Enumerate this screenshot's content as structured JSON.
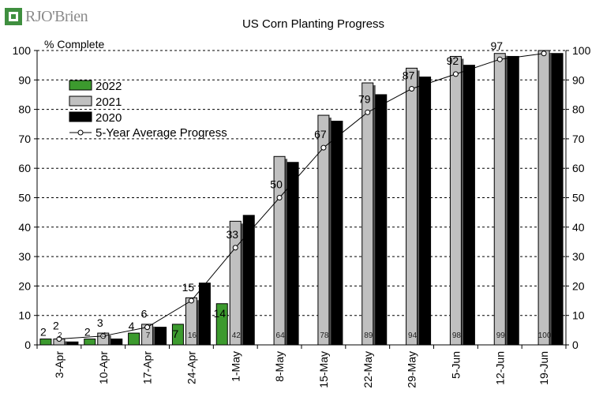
{
  "brand": {
    "name": "RJO'Brien",
    "green": "#3f8f3f",
    "gray": "#8a8a8a"
  },
  "chart_data": {
    "type": "bar",
    "title": "US Corn Planting Progress",
    "ylabel": "% Complete",
    "ylim": [
      0,
      100
    ],
    "yticks": [
      0,
      10,
      20,
      30,
      40,
      50,
      60,
      70,
      80,
      90,
      100
    ],
    "secondary_axis": true,
    "categories": [
      "3-Apr",
      "10-Apr",
      "17-Apr",
      "24-Apr",
      "1-May",
      "8-May",
      "15-May",
      "22-May",
      "29-May",
      "5-Jun",
      "12-Jun",
      "19-Jun"
    ],
    "series": [
      {
        "name": "2022",
        "color": "#3c9a2e",
        "values": [
          2,
          2,
          4,
          7,
          14,
          null,
          null,
          null,
          null,
          null,
          null,
          null
        ]
      },
      {
        "name": "2021",
        "color": "#c0c0c0",
        "values": [
          2,
          4,
          7,
          16,
          42,
          64,
          78,
          89,
          94,
          98,
          99,
          100
        ],
        "labels": [
          "2",
          "4",
          "7",
          "16",
          "42",
          "64",
          "78",
          "89",
          "94",
          "98",
          "99",
          "100"
        ]
      },
      {
        "name": "2020",
        "color": "#000000",
        "values": [
          1,
          2,
          6,
          21,
          44,
          62,
          76,
          85,
          91,
          95,
          98,
          99
        ]
      },
      {
        "name": "5-Year Average Progress",
        "type": "line",
        "color": "#000000",
        "values": [
          2,
          3,
          6,
          15,
          33,
          50,
          67,
          79,
          87,
          92,
          97,
          99
        ],
        "labels": [
          "2",
          "3",
          "6",
          "15",
          "33",
          "50",
          "67",
          "79",
          "87",
          "92",
          "97",
          ""
        ]
      }
    ],
    "legend": {
      "position": "top-left"
    },
    "grid": "horizontal-dashed"
  }
}
